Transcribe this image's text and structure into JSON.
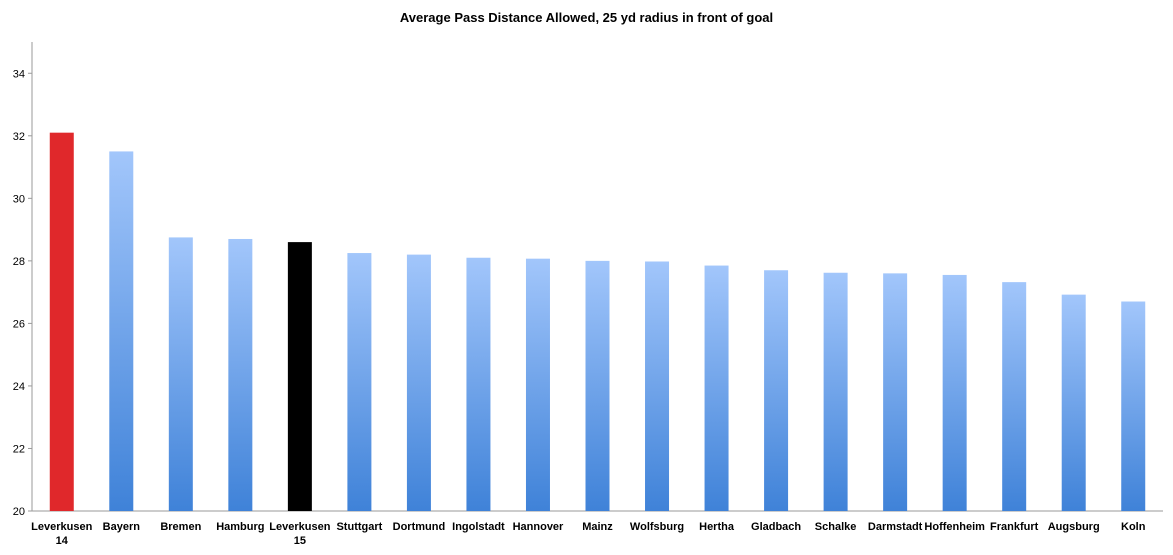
{
  "chart_data": {
    "type": "bar",
    "title": "Average Pass Distance Allowed, 25 yd radius in front of goal",
    "xlabel": "",
    "ylabel": "",
    "ylim": [
      20,
      35
    ],
    "yticks": [
      20,
      22,
      24,
      26,
      28,
      30,
      32,
      34
    ],
    "grid": false,
    "legend": "none",
    "categories": [
      [
        "Leverkusen",
        "14"
      ],
      [
        "Bayern"
      ],
      [
        "Bremen"
      ],
      [
        "Hamburg"
      ],
      [
        "Leverkusen",
        "15"
      ],
      [
        "Stuttgart"
      ],
      [
        "Dortmund"
      ],
      [
        "Ingolstadt"
      ],
      [
        "Hannover"
      ],
      [
        "Mainz"
      ],
      [
        "Wolfsburg"
      ],
      [
        "Hertha"
      ],
      [
        "Gladbach"
      ],
      [
        "Schalke"
      ],
      [
        "Darmstadt"
      ],
      [
        "Hoffenheim"
      ],
      [
        "Frankfurt"
      ],
      [
        "Augsburg"
      ],
      [
        "Koln"
      ]
    ],
    "values": [
      32.1,
      31.5,
      28.75,
      28.7,
      28.6,
      28.25,
      28.2,
      28.1,
      28.07,
      28.0,
      27.98,
      27.85,
      27.7,
      27.62,
      27.6,
      27.55,
      27.32,
      26.92,
      26.7
    ],
    "bar_colors": {
      "default": "#5b9ae6",
      "highlight_0": "#e0282b",
      "highlight_4": "#000000"
    }
  }
}
